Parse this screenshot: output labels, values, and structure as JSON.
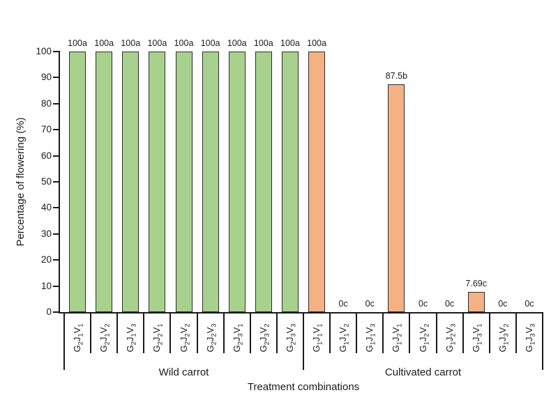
{
  "chart_data": {
    "type": "bar",
    "title": "",
    "ylabel": "Percentage of flowering (%)",
    "xlabel": "Treatment combinations",
    "ylim": [
      0,
      100
    ],
    "yticks": [
      0,
      10,
      20,
      30,
      40,
      50,
      60,
      70,
      80,
      90,
      100
    ],
    "grid": false,
    "legend_position": "none",
    "bar_outline_color": "#2b2b2b",
    "axis_color": "#1a1a1a",
    "groups": [
      {
        "name": "Wild carrot",
        "color": "#a9d18e",
        "bars": [
          {
            "label": "G2J1V1",
            "value": 100,
            "annotation": "100a"
          },
          {
            "label": "G2J1V2",
            "value": 100,
            "annotation": "100a"
          },
          {
            "label": "G2J1V3",
            "value": 100,
            "annotation": "100a"
          },
          {
            "label": "G2J2V1",
            "value": 100,
            "annotation": "100a"
          },
          {
            "label": "G2J2V2",
            "value": 100,
            "annotation": "100a"
          },
          {
            "label": "G2J2V3",
            "value": 100,
            "annotation": "100a"
          },
          {
            "label": "G2J3V1",
            "value": 100,
            "annotation": "100a"
          },
          {
            "label": "G2J3V2",
            "value": 100,
            "annotation": "100a"
          },
          {
            "label": "G2J3V3",
            "value": 100,
            "annotation": "100a"
          }
        ]
      },
      {
        "name": "Cultivated carrot",
        "color": "#f4b183",
        "bars": [
          {
            "label": "G1J1V1",
            "value": 100,
            "annotation": "100a"
          },
          {
            "label": "G1J1V2",
            "value": 0,
            "annotation": "0c"
          },
          {
            "label": "G1J1V3",
            "value": 0,
            "annotation": "0c"
          },
          {
            "label": "G1J2V1",
            "value": 87.5,
            "annotation": "87.5b"
          },
          {
            "label": "G1J2V2",
            "value": 0,
            "annotation": "0c"
          },
          {
            "label": "G1J2V3",
            "value": 0,
            "annotation": "0c"
          },
          {
            "label": "G1J3V1",
            "value": 7.69,
            "annotation": "7.69c"
          },
          {
            "label": "G1J3V2",
            "value": 0,
            "annotation": "0c"
          },
          {
            "label": "G1J3V3",
            "value": 0,
            "annotation": "0c"
          }
        ]
      }
    ]
  }
}
